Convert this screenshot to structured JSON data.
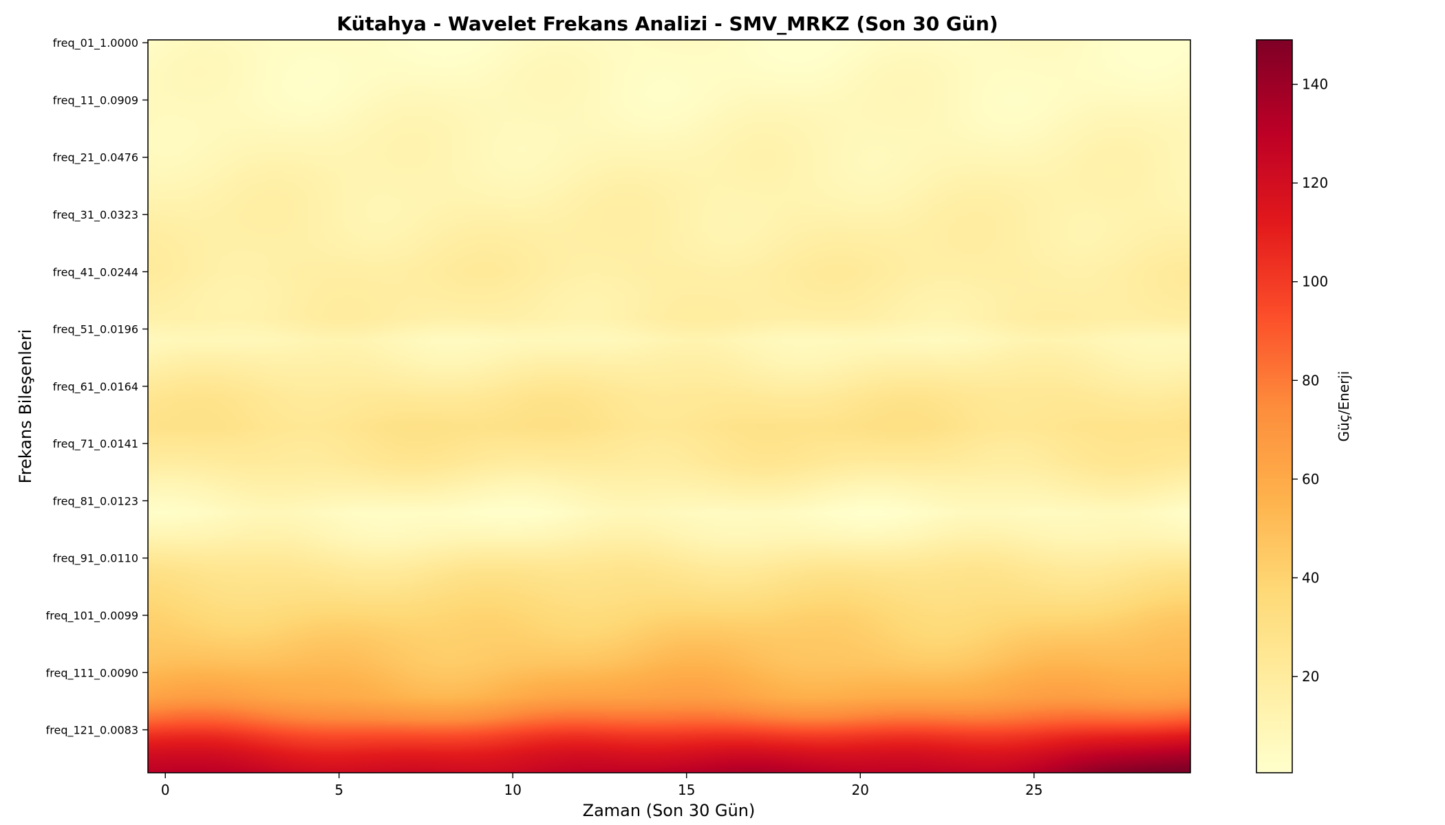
{
  "chart_data": {
    "type": "heatmap",
    "title": "Kütahya - Wavelet Frekans Analizi - SMV_MRKZ (Son 30 Gün)",
    "xlabel": "Zaman (Son 30 Gün)",
    "ylabel": "Frekans Bileşenleri",
    "colorbar_label": "Güç/Enerji",
    "colormap": "YlOrRd",
    "colormap_stops": [
      "#ffffcc",
      "#ffeda0",
      "#fed976",
      "#feb24c",
      "#fd8d3c",
      "#fc4e2a",
      "#e31a1c",
      "#bd0026",
      "#800026"
    ],
    "xlim": [
      -0.5,
      29.5
    ],
    "x_ticks": [
      0,
      5,
      10,
      15,
      20,
      25
    ],
    "n_time": 30,
    "n_freq": 128,
    "y_ticks": [
      {
        "row": 0,
        "label": "freq_01_1.0000"
      },
      {
        "row": 10,
        "label": "freq_11_0.0909"
      },
      {
        "row": 20,
        "label": "freq_21_0.0476"
      },
      {
        "row": 30,
        "label": "freq_31_0.0323"
      },
      {
        "row": 40,
        "label": "freq_41_0.0244"
      },
      {
        "row": 50,
        "label": "freq_51_0.0196"
      },
      {
        "row": 60,
        "label": "freq_61_0.0164"
      },
      {
        "row": 70,
        "label": "freq_71_0.0141"
      },
      {
        "row": 80,
        "label": "freq_81_0.0123"
      },
      {
        "row": 90,
        "label": "freq_91_0.0110"
      },
      {
        "row": 100,
        "label": "freq_101_0.0099"
      },
      {
        "row": 110,
        "label": "freq_111_0.0090"
      },
      {
        "row": 120,
        "label": "freq_121_0.0083"
      }
    ],
    "colorbar_range": [
      0.5,
      149
    ],
    "colorbar_ticks": [
      20,
      40,
      60,
      80,
      100,
      120,
      140
    ],
    "power_profile": [
      {
        "row": 0,
        "value": 3
      },
      {
        "row": 10,
        "value": 6
      },
      {
        "row": 20,
        "value": 10
      },
      {
        "row": 30,
        "value": 14
      },
      {
        "row": 40,
        "value": 18
      },
      {
        "row": 48,
        "value": 16
      },
      {
        "row": 52,
        "value": 8
      },
      {
        "row": 56,
        "value": 14
      },
      {
        "row": 62,
        "value": 24
      },
      {
        "row": 67,
        "value": 28
      },
      {
        "row": 73,
        "value": 22
      },
      {
        "row": 78,
        "value": 12
      },
      {
        "row": 82,
        "value": 4
      },
      {
        "row": 86,
        "value": 10
      },
      {
        "row": 92,
        "value": 25
      },
      {
        "row": 100,
        "value": 38
      },
      {
        "row": 108,
        "value": 48
      },
      {
        "row": 114,
        "value": 60
      },
      {
        "row": 118,
        "value": 80
      },
      {
        "row": 121,
        "value": 100
      },
      {
        "row": 124,
        "value": 115
      },
      {
        "row": 127,
        "value": 125
      }
    ],
    "time_trend_end": 1.15
  }
}
